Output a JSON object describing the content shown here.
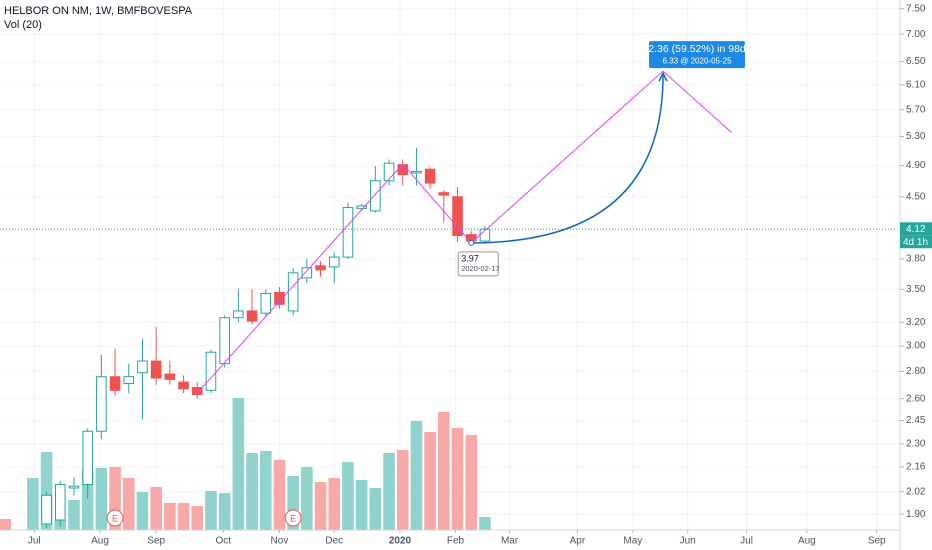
{
  "chart_data": {
    "type": "candlestick",
    "title": "HELBOR ON NM, 1W, BMFBOVESPA",
    "volume_title": "Vol (20)",
    "log_scale": true,
    "grid": true,
    "up_color": "#26a69a",
    "down_color": "#ef5350",
    "x": [
      0,
      1,
      2,
      3,
      4,
      5,
      6,
      7,
      8,
      9,
      10,
      11,
      12,
      13,
      14,
      15,
      16,
      17,
      18,
      19,
      20,
      21,
      22,
      23,
      24,
      25,
      26,
      27,
      28,
      29,
      30,
      31,
      32,
      33,
      34,
      35
    ],
    "open": [
      null,
      null,
      null,
      1.85,
      1.87,
      2.04,
      2.06,
      2.38,
      2.76,
      2.71,
      2.79,
      2.88,
      2.78,
      2.72,
      2.68,
      2.66,
      2.86,
      3.24,
      3.3,
      3.28,
      3.47,
      3.3,
      3.61,
      3.73,
      3.72,
      3.82,
      4.36,
      4.33,
      4.7,
      4.91,
      4.8,
      4.85,
      4.55,
      4.5,
      4.06,
      3.99
    ],
    "high": [
      null,
      null,
      null,
      2.02,
      2.08,
      2.1,
      2.4,
      2.93,
      2.98,
      2.86,
      3.06,
      3.16,
      2.88,
      2.77,
      2.72,
      2.97,
      3.26,
      3.5,
      3.5,
      3.5,
      3.52,
      3.71,
      3.8,
      3.78,
      3.87,
      4.43,
      4.41,
      4.89,
      4.98,
      4.98,
      5.14,
      4.88,
      4.58,
      4.62,
      4.1,
      4.16
    ],
    "low": [
      null,
      null,
      null,
      1.83,
      1.84,
      2.0,
      1.98,
      2.33,
      2.62,
      2.64,
      2.46,
      2.7,
      2.7,
      2.64,
      2.6,
      2.64,
      2.83,
      3.2,
      3.18,
      3.25,
      3.32,
      3.26,
      3.56,
      3.62,
      3.56,
      3.8,
      4.33,
      4.31,
      4.64,
      4.64,
      4.64,
      4.6,
      4.2,
      3.98,
      3.97,
      3.97
    ],
    "close": [
      null,
      null,
      null,
      2.0,
      2.06,
      2.05,
      2.38,
      2.76,
      2.66,
      2.76,
      2.88,
      2.75,
      2.74,
      2.67,
      2.63,
      2.95,
      3.24,
      3.3,
      3.21,
      3.46,
      3.36,
      3.66,
      3.71,
      3.69,
      3.82,
      4.37,
      4.39,
      4.7,
      4.93,
      4.78,
      4.82,
      4.67,
      4.52,
      4.05,
      3.99,
      4.12
    ],
    "volume": [
      11,
      null,
      52,
      78,
      10,
      30,
      60,
      62,
      63,
      52,
      38,
      43,
      27,
      27,
      24,
      39,
      37,
      132,
      77,
      79,
      70,
      54,
      63,
      48,
      52,
      68,
      50,
      42,
      77,
      80,
      109,
      98,
      118,
      102,
      95,
      13
    ],
    "volume_colors": [
      "#f7a9a7",
      null,
      "#8fd3cc",
      "#8fd3cc",
      "#8fd3cc",
      "#8fd3cc",
      "#8fd3cc",
      "#8fd3cc",
      "#f7a9a7",
      "#f7a9a7",
      "#8fd3cc",
      "#f7a9a7",
      "#f7a9a7",
      "#f7a9a7",
      "#f7a9a7",
      "#8fd3cc",
      "#8fd3cc",
      "#8fd3cc",
      "#8fd3cc",
      "#8fd3cc",
      "#f7a9a7",
      "#8fd3cc",
      "#8fd3cc",
      "#f7a9a7",
      "#f7a9a7",
      "#8fd3cc",
      "#8fd3cc",
      "#8fd3cc",
      "#8fd3cc",
      "#f7a9a7",
      "#8fd3cc",
      "#f7a9a7",
      "#f7a9a7",
      "#f7a9a7",
      "#f7a9a7",
      "#8fd3cc"
    ],
    "xlim": [
      -0.4,
      65.3
    ],
    "ylim": [
      1.82,
      7.68
    ],
    "y2lim": [
      0,
      165
    ],
    "xticks": [
      {
        "value": 2.1,
        "label": "Jul"
      },
      {
        "value": 6.9,
        "label": "Aug"
      },
      {
        "value": 11.0,
        "label": "Sep"
      },
      {
        "value": 15.9,
        "label": "Oct"
      },
      {
        "value": 20.0,
        "label": "Nov"
      },
      {
        "value": 24.0,
        "label": "Dec"
      },
      {
        "value": 28.8,
        "label": "2020"
      },
      {
        "value": 32.85,
        "label": "Feb"
      },
      {
        "value": 36.8,
        "label": "Mar"
      },
      {
        "value": 41.75,
        "label": "Apr"
      },
      {
        "value": 45.8,
        "label": "May"
      },
      {
        "value": 49.8,
        "label": "Jun"
      },
      {
        "value": 54.1,
        "label": "Jul"
      },
      {
        "value": 58.5,
        "label": "Aug"
      },
      {
        "value": 63.6,
        "label": "Sep"
      }
    ],
    "yticks": [
      {
        "value": 7.5,
        "label": "7.50"
      },
      {
        "value": 7,
        "label": "7.00"
      },
      {
        "value": 6.5,
        "label": "6.50"
      },
      {
        "value": 6.1,
        "label": "6.10"
      },
      {
        "value": 5.7,
        "label": "5.70"
      },
      {
        "value": 5.3,
        "label": "5.30"
      },
      {
        "value": 4.9,
        "label": "4.90"
      },
      {
        "value": 4.5,
        "label": "4.50"
      },
      {
        "value": 3.8,
        "label": "3.80"
      },
      {
        "value": 3.5,
        "label": "3.50"
      },
      {
        "value": 3.2,
        "label": "3.20"
      },
      {
        "value": 3,
        "label": "3.00"
      },
      {
        "value": 2.8,
        "label": "2.80"
      },
      {
        "value": 2.6,
        "label": "2.60"
      },
      {
        "value": 2.45,
        "label": "2.45"
      },
      {
        "value": 2.3,
        "label": "2.30"
      },
      {
        "value": 2.16,
        "label": "2.16"
      },
      {
        "value": 2.02,
        "label": "2.02"
      },
      {
        "value": 1.9,
        "label": "1.90"
      }
    ],
    "last_price": {
      "value": 4.12,
      "label": "4.12"
    },
    "countdown": "4d 1h",
    "events": [
      {
        "x": 8,
        "label": "E"
      },
      {
        "x": 21,
        "label": "E"
      }
    ],
    "trend_line": {
      "color": "#e040fb",
      "x": [
        14,
        29,
        34,
        48,
        53
      ],
      "y": [
        2.64,
        4.92,
        3.97,
        6.33,
        5.36
      ]
    },
    "projection": {
      "color": "#1565c0",
      "box_color": "#1e88e5",
      "start": {
        "x": 34,
        "y": 3.97
      },
      "end": {
        "x": 48,
        "y": 6.33
      },
      "label": "2.36 (59.52%) in 98d",
      "sublabel": "6.33 @ 2020-05-25",
      "start_label": "3.97",
      "start_date": "2020-02-17"
    }
  }
}
